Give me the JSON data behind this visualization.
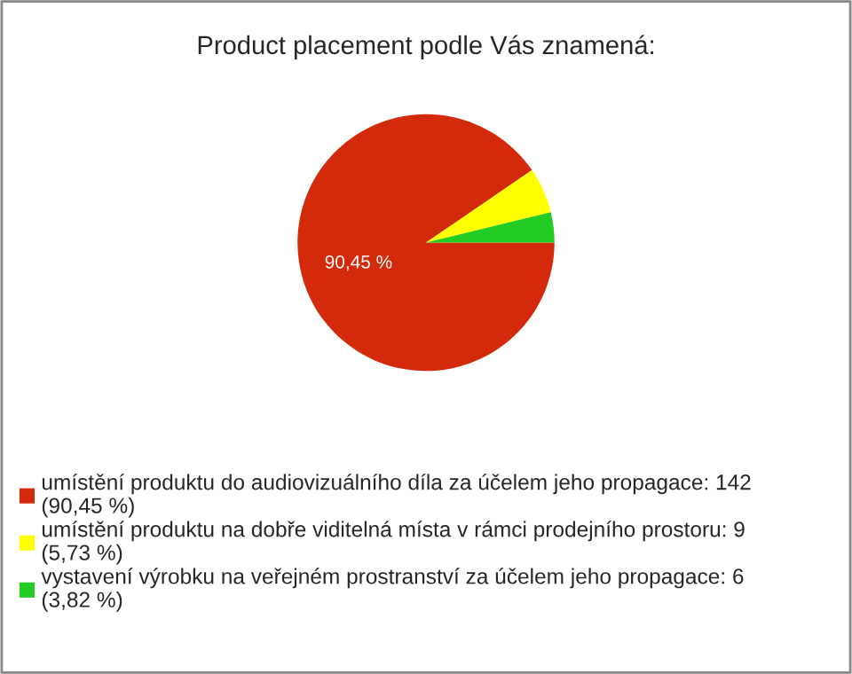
{
  "chart_data": {
    "type": "pie",
    "title": "Product placement podle Vás znamená:",
    "categories": [
      "umístění produktu do audiovizuálního díla za účelem jeho propagace: 142\n(90,45 %)",
      "umístění produktu na dobře viditelná místa v rámci prodejního prostoru: 9\n(5,73 %)",
      "vystavení výrobku na veřejném prostranství za účelem jeho propagace: 6\n(3,82 %)"
    ],
    "values": [
      90.45,
      5.73,
      3.82
    ],
    "colors": [
      "#d42a0c",
      "#ffff00",
      "#22cc22"
    ],
    "value_labels": [
      "90,45 %",
      null,
      null
    ],
    "legend": "bottom"
  }
}
